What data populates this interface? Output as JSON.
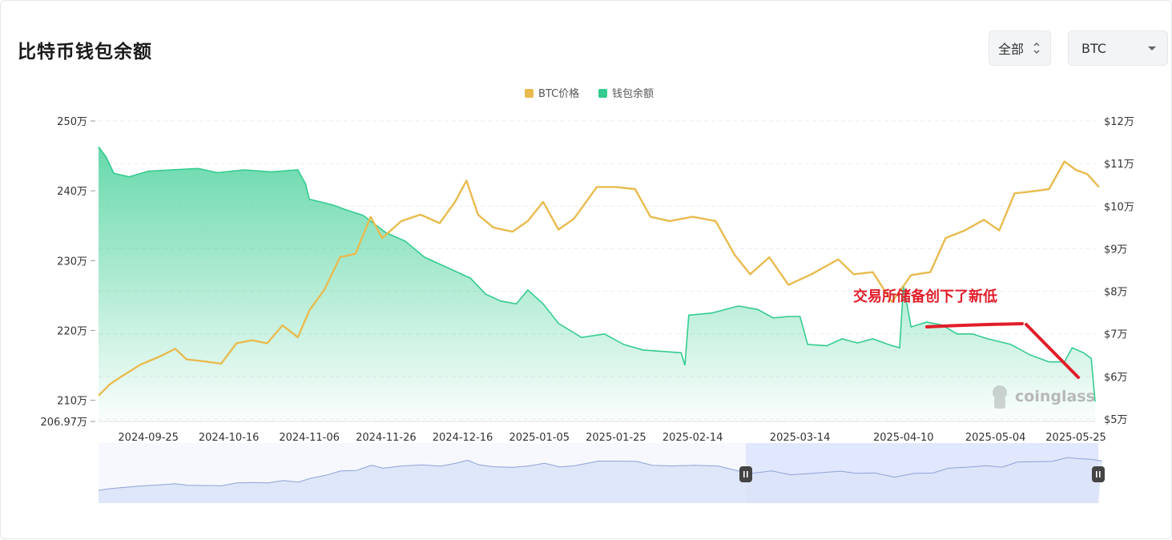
{
  "header": {
    "title": "比特币钱包余额",
    "range_select": "全部",
    "coin_select": "BTC"
  },
  "colors": {
    "price": "#e9bb4f",
    "balance": "#34cc8f",
    "annotation": "#e11d2a",
    "navigator_fill": "#dde4fb",
    "navigator_line": "#8ea3d6"
  },
  "watermark": "coinglass",
  "annotation": {
    "text": "交易所储备创下了新低"
  },
  "chart_data": {
    "type": "area",
    "legend": [
      "BTC价格",
      "钱包余额"
    ],
    "legend_position": "top-center",
    "grid": true,
    "x_ticks": [
      "2024-09-25",
      "2024-10-16",
      "2024-11-06",
      "2024-11-26",
      "2024-12-16",
      "2025-01-05",
      "2025-01-25",
      "2025-02-14",
      "2025-03-14",
      "2025-04-10",
      "2025-05-04",
      "2025-05-25"
    ],
    "left_axis": {
      "ticks": [
        "250万",
        "240万",
        "230万",
        "220万",
        "210万",
        "206.97万"
      ],
      "tick_values": [
        2500000,
        2400000,
        2300000,
        2200000,
        2100000,
        2069700
      ],
      "range": [
        2069700,
        2500000
      ]
    },
    "right_axis": {
      "ticks": [
        "$12万",
        "$11万",
        "$10万",
        "$9万",
        "$8万",
        "$7万",
        "$6万",
        "$5万"
      ],
      "tick_values": [
        120000,
        110000,
        100000,
        90000,
        80000,
        70000,
        60000,
        50000
      ],
      "range": [
        50000,
        120000
      ]
    },
    "series": [
      {
        "name": "钱包余额",
        "axis": "left",
        "points": [
          [
            "2024-09-12",
            2463000
          ],
          [
            "2024-09-14",
            2448000
          ],
          [
            "2024-09-16",
            2425000
          ],
          [
            "2024-09-20",
            2420000
          ],
          [
            "2024-09-25",
            2428000
          ],
          [
            "2024-10-01",
            2430000
          ],
          [
            "2024-10-08",
            2432000
          ],
          [
            "2024-10-13",
            2426000
          ],
          [
            "2024-10-20",
            2430000
          ],
          [
            "2024-10-27",
            2427000
          ],
          [
            "2024-11-03",
            2430000
          ],
          [
            "2024-11-05",
            2410000
          ],
          [
            "2024-11-06",
            2388000
          ],
          [
            "2024-11-12",
            2380000
          ],
          [
            "2024-11-16",
            2372000
          ],
          [
            "2024-11-20",
            2365000
          ],
          [
            "2024-11-26",
            2340000
          ],
          [
            "2024-12-01",
            2328000
          ],
          [
            "2024-12-06",
            2305000
          ],
          [
            "2024-12-12",
            2290000
          ],
          [
            "2024-12-18",
            2275000
          ],
          [
            "2024-12-22",
            2252000
          ],
          [
            "2024-12-26",
            2242000
          ],
          [
            "2024-12-30",
            2238000
          ],
          [
            "2025-01-02",
            2258000
          ],
          [
            "2025-01-06",
            2238000
          ],
          [
            "2025-01-10",
            2210000
          ],
          [
            "2025-01-16",
            2190000
          ],
          [
            "2025-01-22",
            2195000
          ],
          [
            "2025-01-27",
            2180000
          ],
          [
            "2025-02-01",
            2172000
          ],
          [
            "2025-02-06",
            2170000
          ],
          [
            "2025-02-11",
            2168000
          ],
          [
            "2025-02-12",
            2150000
          ],
          [
            "2025-02-13",
            2222000
          ],
          [
            "2025-02-19",
            2225000
          ],
          [
            "2025-02-26",
            2235000
          ],
          [
            "2025-03-03",
            2230000
          ],
          [
            "2025-03-07",
            2218000
          ],
          [
            "2025-03-11",
            2220000
          ],
          [
            "2025-03-14",
            2220000
          ],
          [
            "2025-03-16",
            2180000
          ],
          [
            "2025-03-21",
            2178000
          ],
          [
            "2025-03-25",
            2188000
          ],
          [
            "2025-03-29",
            2182000
          ],
          [
            "2025-04-02",
            2188000
          ],
          [
            "2025-04-06",
            2180000
          ],
          [
            "2025-04-09",
            2175000
          ],
          [
            "2025-04-10",
            2265000
          ],
          [
            "2025-04-12",
            2205000
          ],
          [
            "2025-04-16",
            2212000
          ],
          [
            "2025-04-20",
            2208000
          ],
          [
            "2025-04-24",
            2195000
          ],
          [
            "2025-04-28",
            2195000
          ],
          [
            "2025-05-02",
            2188000
          ],
          [
            "2025-05-08",
            2180000
          ],
          [
            "2025-05-13",
            2165000
          ],
          [
            "2025-05-18",
            2155000
          ],
          [
            "2025-05-22",
            2155000
          ],
          [
            "2025-05-24",
            2175000
          ],
          [
            "2025-05-27",
            2168000
          ],
          [
            "2025-05-29",
            2160000
          ],
          [
            "2025-05-30",
            2098000
          ]
        ]
      },
      {
        "name": "BTC价格",
        "axis": "right",
        "points": [
          [
            "2024-09-12",
            55500
          ],
          [
            "2024-09-15",
            58200
          ],
          [
            "2024-09-18",
            60000
          ],
          [
            "2024-09-23",
            62800
          ],
          [
            "2024-09-28",
            64700
          ],
          [
            "2024-10-02",
            66500
          ],
          [
            "2024-10-05",
            64000
          ],
          [
            "2024-10-10",
            63500
          ],
          [
            "2024-10-14",
            63000
          ],
          [
            "2024-10-18",
            67800
          ],
          [
            "2024-10-22",
            68500
          ],
          [
            "2024-10-26",
            67800
          ],
          [
            "2024-10-30",
            72000
          ],
          [
            "2024-11-03",
            69200
          ],
          [
            "2024-11-06",
            75500
          ],
          [
            "2024-11-10",
            80500
          ],
          [
            "2024-11-14",
            88000
          ],
          [
            "2024-11-18",
            88800
          ],
          [
            "2024-11-22",
            97500
          ],
          [
            "2024-11-25",
            92500
          ],
          [
            "2024-11-30",
            96500
          ],
          [
            "2024-12-05",
            98000
          ],
          [
            "2024-12-10",
            96000
          ],
          [
            "2024-12-14",
            101000
          ],
          [
            "2024-12-17",
            106000
          ],
          [
            "2024-12-20",
            98000
          ],
          [
            "2024-12-24",
            95000
          ],
          [
            "2024-12-29",
            94000
          ],
          [
            "2025-01-02",
            96500
          ],
          [
            "2025-01-06",
            101000
          ],
          [
            "2025-01-10",
            94500
          ],
          [
            "2025-01-14",
            97000
          ],
          [
            "2025-01-20",
            104500
          ],
          [
            "2025-01-25",
            104500
          ],
          [
            "2025-01-30",
            104000
          ],
          [
            "2025-02-03",
            97500
          ],
          [
            "2025-02-08",
            96500
          ],
          [
            "2025-02-14",
            97500
          ],
          [
            "2025-02-20",
            96500
          ],
          [
            "2025-02-25",
            88500
          ],
          [
            "2025-03-01",
            84000
          ],
          [
            "2025-03-06",
            88000
          ],
          [
            "2025-03-11",
            81500
          ],
          [
            "2025-03-17",
            84000
          ],
          [
            "2025-03-24",
            87500
          ],
          [
            "2025-03-28",
            84000
          ],
          [
            "2025-04-02",
            84500
          ],
          [
            "2025-04-07",
            77500
          ],
          [
            "2025-04-12",
            83800
          ],
          [
            "2025-04-17",
            84500
          ],
          [
            "2025-04-21",
            92500
          ],
          [
            "2025-04-26",
            94300
          ],
          [
            "2025-05-01",
            96800
          ],
          [
            "2025-05-05",
            94300
          ],
          [
            "2025-05-09",
            103000
          ],
          [
            "2025-05-14",
            103500
          ],
          [
            "2025-05-18",
            104000
          ],
          [
            "2025-05-22",
            110500
          ],
          [
            "2025-05-25",
            108500
          ],
          [
            "2025-05-28",
            107500
          ],
          [
            "2025-05-31",
            104500
          ]
        ]
      }
    ]
  }
}
